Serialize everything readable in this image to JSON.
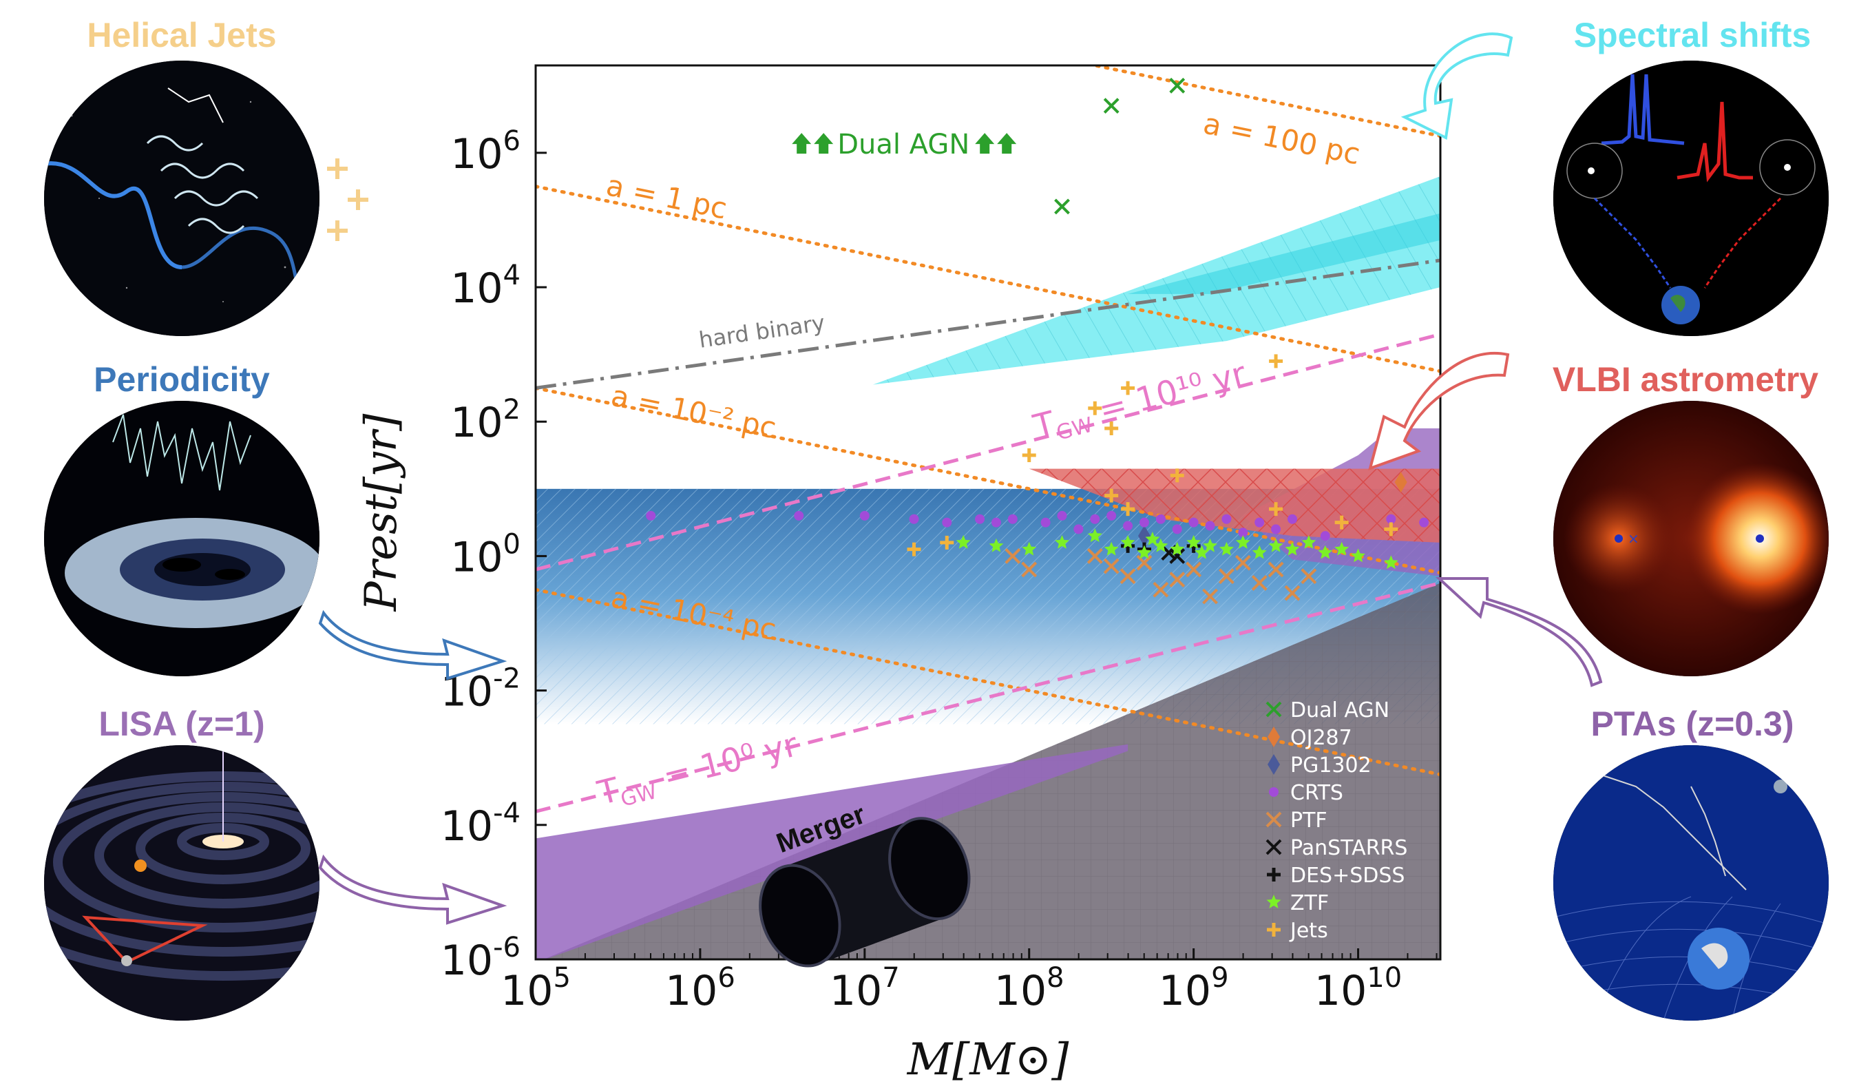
{
  "panels": {
    "helical_jets": {
      "title": "Helical Jets",
      "color": "#f5cf8a"
    },
    "periodicity": {
      "title": "Periodicity",
      "color": "#3d78b9"
    },
    "lisa": {
      "title": "LISA (z=1)",
      "color": "#9a6fb4"
    },
    "spectral_shifts": {
      "title": "Spectral shifts",
      "color": "#63e4ef"
    },
    "vlbi": {
      "title": "VLBI astrometry",
      "color": "#e0605c"
    },
    "ptas": {
      "title": "PTAs (z=0.3)",
      "color": "#8e62a8"
    }
  },
  "chart_data": {
    "type": "scatter",
    "xlabel": "M[M⊙]",
    "ylabel": "Prest[yr]",
    "xscale": "log",
    "yscale": "log",
    "xlim_log10": [
      5,
      10.5
    ],
    "ylim_log10": [
      -6,
      7.3
    ],
    "x_ticks": [
      "10^5",
      "10^6",
      "10^7",
      "10^8",
      "10^9",
      "10^10"
    ],
    "y_ticks": [
      "10^-6",
      "10^-4",
      "10^-2",
      "10^0",
      "10^2",
      "10^4",
      "10^6"
    ],
    "line_labels": {
      "a100": "a = 100 pc",
      "a1": "a = 1 pc",
      "a1e-2": "a = 10⁻² pc",
      "a1e-4": "a = 10⁻⁴ pc",
      "tgw10": "T",
      "tgw10_sub": "GW",
      "tgw10_rest": " = 10¹⁰ yr",
      "tgw0": "T",
      "tgw0_sub": "GW",
      "tgw0_rest": " = 10⁰ yr",
      "hard": "hard binary",
      "dual": "Dual AGN",
      "merger": "Merger"
    },
    "lines": {
      "separation_slope": -0.5,
      "a100_at_1e5_log10": 9.0,
      "a1_at_1e5_log10": 5.5,
      "a1e-2_at_1e5_log10": 2.5,
      "a1e-4_at_1e5_log10": -0.5,
      "tgw10": [
        [
          5,
          -0.2
        ],
        [
          10.5,
          3.3
        ]
      ],
      "tgw0": [
        [
          5,
          -3.8
        ],
        [
          10.5,
          -0.4
        ]
      ],
      "hard_binary": [
        [
          5,
          2.5
        ],
        [
          10.5,
          4.4
        ]
      ]
    },
    "series": [
      {
        "name": "Dual AGN",
        "marker": "x",
        "color": "#2ca02c",
        "points": [
          [
            8.5,
            6.7
          ],
          [
            8.9,
            7.0
          ],
          [
            8.2,
            5.2
          ]
        ]
      },
      {
        "name": "OJ287",
        "marker": "diamond",
        "color": "#e07b39",
        "points": [
          [
            10.26,
            1.1
          ]
        ]
      },
      {
        "name": "PG1302",
        "marker": "diamond",
        "color": "#4a5a9a",
        "points": [
          [
            8.7,
            0.3
          ]
        ]
      },
      {
        "name": "CRTS",
        "marker": "dot",
        "color": "#a24bd8",
        "points": [
          [
            5.7,
            0.6
          ],
          [
            6.6,
            0.6
          ],
          [
            7.0,
            0.6
          ],
          [
            7.3,
            0.55
          ],
          [
            7.5,
            0.5
          ],
          [
            7.7,
            0.55
          ],
          [
            7.8,
            0.5
          ],
          [
            7.9,
            0.55
          ],
          [
            8.1,
            0.5
          ],
          [
            8.2,
            0.6
          ],
          [
            8.3,
            0.4
          ],
          [
            8.4,
            0.55
          ],
          [
            8.5,
            0.6
          ],
          [
            8.6,
            0.45
          ],
          [
            8.7,
            0.5
          ],
          [
            8.8,
            0.55
          ],
          [
            8.9,
            0.4
          ],
          [
            9.0,
            0.5
          ],
          [
            9.1,
            0.45
          ],
          [
            9.2,
            0.55
          ],
          [
            9.3,
            0.35
          ],
          [
            9.4,
            0.5
          ],
          [
            9.5,
            0.4
          ],
          [
            9.6,
            0.55
          ],
          [
            9.8,
            0.3
          ],
          [
            10.2,
            0.55
          ],
          [
            10.4,
            0.5
          ]
        ]
      },
      {
        "name": "PTF",
        "marker": "x",
        "color": "#d98c4a",
        "points": [
          [
            7.9,
            0.0
          ],
          [
            8.0,
            -0.2
          ],
          [
            8.4,
            0.0
          ],
          [
            8.6,
            -0.3
          ],
          [
            8.7,
            -0.1
          ],
          [
            8.8,
            -0.5
          ],
          [
            9.0,
            -0.2
          ],
          [
            9.1,
            -0.6
          ],
          [
            9.2,
            -0.3
          ],
          [
            9.3,
            -0.1
          ],
          [
            9.4,
            -0.4
          ],
          [
            9.5,
            -0.2
          ],
          [
            9.6,
            -0.55
          ],
          [
            9.7,
            -0.3
          ],
          [
            8.5,
            -0.15
          ],
          [
            8.9,
            -0.35
          ]
        ]
      },
      {
        "name": "PanSTARRS",
        "marker": "x",
        "color": "#111111",
        "points": [
          [
            8.9,
            0.0
          ],
          [
            8.85,
            0.05
          ]
        ]
      },
      {
        "name": "DES+SDSS",
        "marker": "plus",
        "color": "#111111",
        "points": [
          [
            8.6,
            0.15
          ],
          [
            8.7,
            0.1
          ],
          [
            9.0,
            0.15
          ]
        ]
      },
      {
        "name": "ZTF",
        "marker": "star",
        "color": "#7cf026",
        "points": [
          [
            7.6,
            0.2
          ],
          [
            7.8,
            0.15
          ],
          [
            8.0,
            0.1
          ],
          [
            8.2,
            0.2
          ],
          [
            8.4,
            0.3
          ],
          [
            8.5,
            0.1
          ],
          [
            8.6,
            0.2
          ],
          [
            8.7,
            0.05
          ],
          [
            8.75,
            0.25
          ],
          [
            8.8,
            0.15
          ],
          [
            8.9,
            0.1
          ],
          [
            9.0,
            0.2
          ],
          [
            9.05,
            0.05
          ],
          [
            9.1,
            0.15
          ],
          [
            9.2,
            0.1
          ],
          [
            9.3,
            0.2
          ],
          [
            9.4,
            0.05
          ],
          [
            9.5,
            0.15
          ],
          [
            9.6,
            0.1
          ],
          [
            9.7,
            0.2
          ],
          [
            9.8,
            0.05
          ],
          [
            9.9,
            0.1
          ],
          [
            10.0,
            0.0
          ],
          [
            10.2,
            -0.1
          ]
        ]
      },
      {
        "name": "Jets",
        "marker": "plus",
        "color": "#f2b33c",
        "points": [
          [
            7.5,
            0.2
          ],
          [
            7.3,
            0.1
          ],
          [
            8.0,
            1.5
          ],
          [
            8.4,
            2.2
          ],
          [
            8.6,
            2.5
          ],
          [
            8.5,
            1.9
          ],
          [
            9.5,
            2.9
          ],
          [
            8.9,
            1.2
          ],
          [
            8.5,
            0.9
          ],
          [
            9.5,
            0.7
          ],
          [
            10.2,
            0.4
          ],
          [
            9.9,
            0.5
          ],
          [
            8.6,
            0.7
          ]
        ]
      }
    ],
    "regions": {
      "cyan_band": "Spectral shifts",
      "blue_band": "Periodicity",
      "red_band": "VLBI astrometry",
      "purple_upper": "PTAs",
      "purple_lower": "LISA",
      "grey": "Merger"
    },
    "legend_position": "lower-right"
  }
}
